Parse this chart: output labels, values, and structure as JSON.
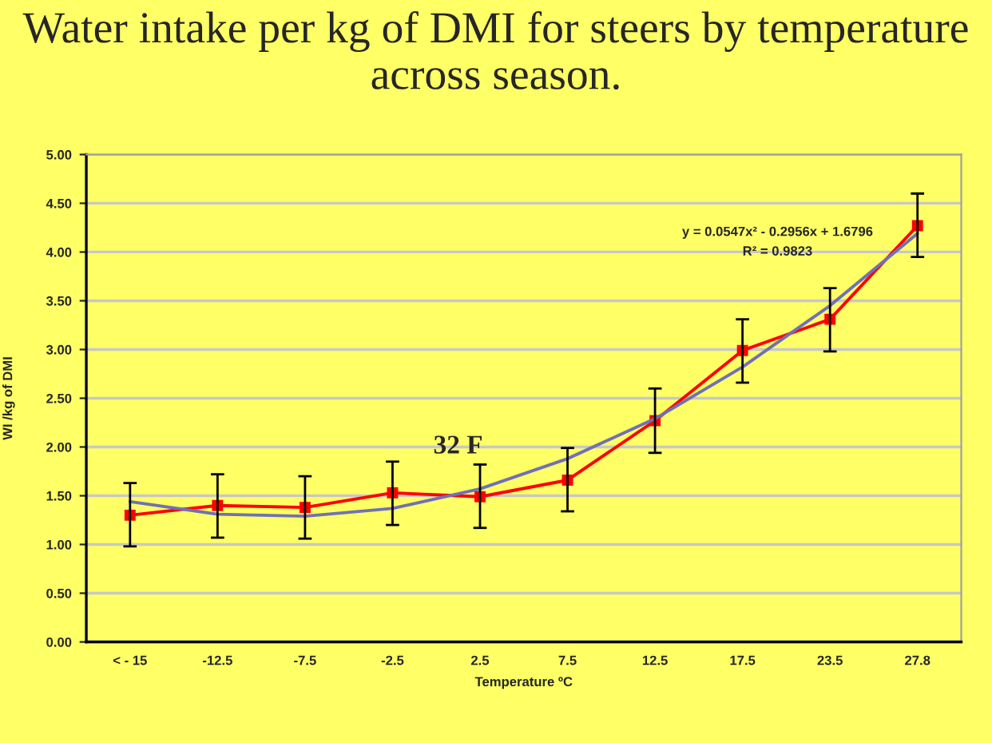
{
  "chart_data": {
    "type": "line",
    "title": "Water intake per kg of DMI for steers by temperature across season.",
    "xlabel": "Temperature ºC",
    "ylabel": "WI /kg of DMI",
    "categories": [
      "< - 15",
      "-12.5",
      "-7.5",
      "-2.5",
      "2.5",
      "7.5",
      "12.5",
      "17.5",
      "23.5",
      "27.8"
    ],
    "series": [
      {
        "color": "#ff0000",
        "marker": "square",
        "values": [
          1.3,
          1.4,
          1.38,
          1.53,
          1.49,
          1.66,
          2.27,
          2.99,
          3.31,
          4.27
        ],
        "errors": [
          [
            0.98,
            1.63
          ],
          [
            1.07,
            1.72
          ],
          [
            1.06,
            1.7
          ],
          [
            1.2,
            1.85
          ],
          [
            1.17,
            1.82
          ],
          [
            1.34,
            1.99
          ],
          [
            1.94,
            2.6
          ],
          [
            2.66,
            3.31
          ],
          [
            2.98,
            3.63
          ],
          [
            3.95,
            4.6
          ]
        ]
      },
      {
        "color": "#7070b8",
        "marker": "none",
        "values": [
          1.44,
          1.31,
          1.29,
          1.37,
          1.57,
          1.88,
          2.29,
          2.82,
          3.45,
          4.19
        ]
      }
    ],
    "ylim": [
      0,
      5
    ],
    "yticks": [
      {
        "value": 0,
        "label": "0.00"
      },
      {
        "value": 0.5,
        "label": "0.50"
      },
      {
        "value": 1,
        "label": "1.00"
      },
      {
        "value": 1.5,
        "label": "1.50"
      },
      {
        "value": 2,
        "label": "2.00"
      },
      {
        "value": 2.5,
        "label": "2.50"
      },
      {
        "value": 3,
        "label": "3.00"
      },
      {
        "value": 3.5,
        "label": "3.50"
      },
      {
        "value": 4,
        "label": "4.00"
      },
      {
        "value": 4.5,
        "label": "4.50"
      },
      {
        "value": 5,
        "label": "5.00"
      }
    ],
    "grid": "y",
    "annotations": [
      "y = 0.0547x² - 0.2956x + 1.6796",
      "R² = 0.9823",
      "32 F"
    ]
  }
}
